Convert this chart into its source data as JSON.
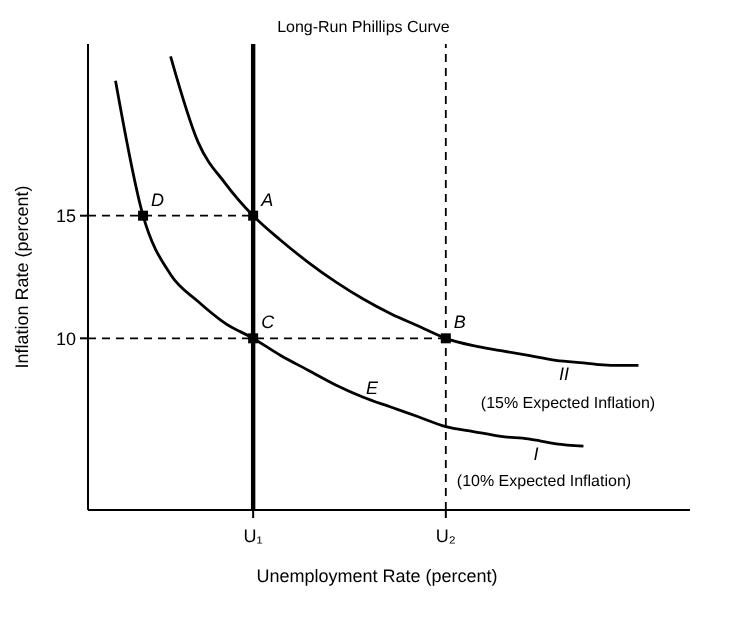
{
  "chart_data": {
    "type": "line",
    "xlabel": "Unemployment Rate (percent)",
    "ylabel": "Inflation Rate (percent)",
    "categories": [
      null,
      null,
      null,
      null,
      null,
      null,
      "U₁",
      null,
      null,
      null,
      null,
      null,
      null,
      "U₂",
      null,
      null,
      null,
      null,
      null,
      null,
      null,
      null
    ],
    "ylim": [
      3,
      22
    ],
    "yticks": [
      10,
      15
    ],
    "grid": false,
    "series": [
      {
        "color": "#000000",
        "values": [
          null,
          20.5,
          15,
          12.6,
          11.5,
          10.6,
          10,
          9.3,
          8.7,
          8.1,
          7.6,
          7.2,
          6.8,
          6.4,
          6.2,
          6,
          5.9,
          5.7,
          5.6,
          null,
          null,
          null
        ]
      },
      {
        "color": "#000000",
        "values": [
          null,
          null,
          null,
          21.5,
          18,
          16.3,
          15,
          14,
          13.1,
          12.3,
          11.6,
          11,
          10.5,
          10,
          9.7,
          9.5,
          9.3,
          9.1,
          9,
          8.9,
          8.9,
          null
        ]
      },
      {
        "type": "line",
        "line_style": "dashed",
        "color": "#000000",
        "values": [
          15,
          15,
          15,
          15,
          15,
          15,
          15,
          null,
          null,
          null,
          null,
          null,
          null,
          null,
          null,
          null,
          null,
          null,
          null,
          null,
          null,
          null
        ]
      },
      {
        "type": "line",
        "line_style": "dashed",
        "color": "#000000",
        "values": [
          10,
          10,
          10,
          10,
          10,
          10,
          10,
          10,
          10,
          10,
          10,
          10,
          10,
          10,
          null,
          null,
          null,
          null,
          null,
          null,
          null,
          null
        ]
      },
      {
        "type": "scatter",
        "marker": "square",
        "color": "#000000",
        "values": [
          null,
          null,
          15,
          null,
          null,
          null,
          15,
          null,
          null,
          null,
          null,
          null,
          null,
          null,
          null,
          null,
          null,
          null,
          null,
          null,
          null,
          null
        ]
      },
      {
        "type": "scatter",
        "marker": "square",
        "color": "#000000",
        "values": [
          null,
          null,
          null,
          null,
          null,
          null,
          10,
          null,
          null,
          null,
          null,
          null,
          null,
          10,
          null,
          null,
          null,
          null,
          null,
          null,
          null,
          null
        ]
      }
    ],
    "ref_lines": [
      {
        "axis": "x",
        "value": "U₁",
        "label": "Long-Run Phillips Curve",
        "color": "#000000"
      },
      {
        "axis": "x",
        "value": "U₂",
        "line_style": "dashed",
        "color": "#000000"
      }
    ],
    "annotations": [
      {
        "text": "D",
        "y": 15
      },
      {
        "text": "A",
        "x": "U₁",
        "y": 15
      },
      {
        "text": "C",
        "x": "U₁",
        "y": 10
      },
      {
        "text": "B",
        "x": "U₂",
        "y": 10
      },
      "E",
      "II",
      "(15% Expected Inflation)",
      "I",
      "(10% Expected Inflation)"
    ]
  }
}
